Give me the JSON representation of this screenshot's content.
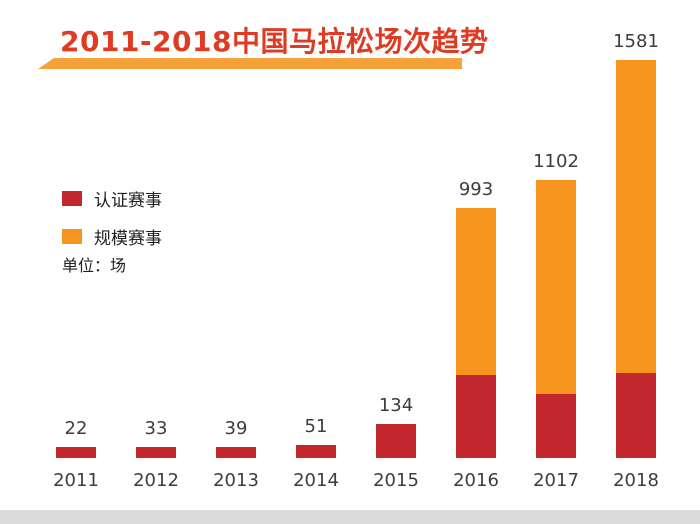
{
  "page": {
    "background": "#ffffff"
  },
  "colors": {
    "title": "#df3b22",
    "underline": "#f6a13a",
    "certified_red": "#c1272d",
    "scale_orange": "#f7941e",
    "label_text": "#3d3d3d"
  },
  "chart_data": {
    "type": "bar",
    "stacked": true,
    "title": "2011-2018中国马拉松场次趋势",
    "unit_label": "单位：场",
    "legend_position": "left",
    "grid": false,
    "categories": [
      "2011",
      "2012",
      "2013",
      "2014",
      "2015",
      "2016",
      "2017",
      "2018"
    ],
    "series": [
      {
        "name": "认证赛事",
        "color": "#c1272d",
        "values": [
          22,
          33,
          39,
          51,
          134,
          328,
          256,
          339
        ]
      },
      {
        "name": "规模赛事",
        "color": "#f7941e",
        "values": [
          0,
          0,
          0,
          0,
          0,
          665,
          846,
          1242
        ]
      }
    ],
    "totals": [
      22,
      33,
      39,
      51,
      134,
      993,
      1102,
      1581
    ],
    "total_labels": [
      "22",
      "33",
      "39",
      "51",
      "134",
      "993",
      "1102",
      "1581"
    ],
    "ylim": [
      0,
      1700
    ]
  }
}
